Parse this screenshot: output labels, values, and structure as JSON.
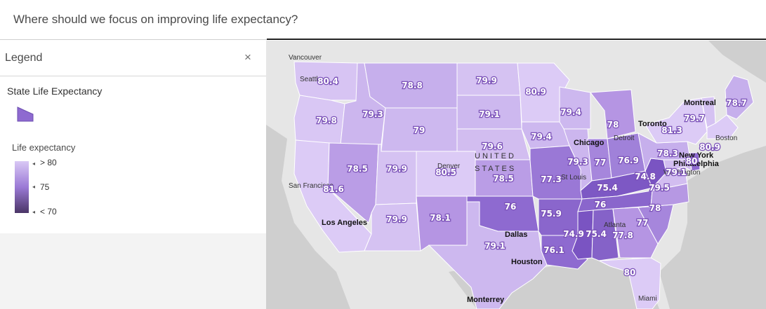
{
  "header": {
    "title": "Where should we focus on improving life expectancy?"
  },
  "legend": {
    "title": "Legend",
    "close_label": "×",
    "layer_name": "State Life Expectancy",
    "field_name": "Life expectancy",
    "ramp_labels": {
      "high": "> 80",
      "mid": "75",
      "low": "< 70"
    },
    "ramp_colors": {
      "high": "#d9c8f5",
      "mid": "#9b7ad6",
      "low": "#4a3566"
    }
  },
  "map": {
    "country": [
      "UNITED",
      "STATES"
    ],
    "cities": {
      "vancouver": "Vancouver",
      "seattle": "Seattle",
      "san_francisco": "San Francisco",
      "los_angeles": "Los Angeles",
      "denver": "Denver",
      "dallas": "Dallas",
      "houston": "Houston",
      "monterrey": "Monterrey",
      "st_louis": "St Louis",
      "chicago": "Chicago",
      "detroit": "Detroit",
      "toronto": "Toronto",
      "montreal": "Montreal",
      "boston": "Boston",
      "new_york": "New York",
      "philadelphia": "Philadelphia",
      "washington": "Washington",
      "atlanta": "Atlanta",
      "miami": "Miami"
    },
    "states": [
      {
        "id": "WA",
        "value": "80.4"
      },
      {
        "id": "OR",
        "value": "79.8"
      },
      {
        "id": "CA",
        "value": "81.6"
      },
      {
        "id": "ID",
        "value": "79.3"
      },
      {
        "id": "NV",
        "value": "78.5"
      },
      {
        "id": "MT",
        "value": "78.8"
      },
      {
        "id": "WY",
        "value": "79"
      },
      {
        "id": "UT",
        "value": "79.9"
      },
      {
        "id": "AZ",
        "value": "79.9"
      },
      {
        "id": "CO",
        "value": "80.5"
      },
      {
        "id": "NM",
        "value": "78.1"
      },
      {
        "id": "ND",
        "value": "79.9"
      },
      {
        "id": "SD",
        "value": "79.1"
      },
      {
        "id": "NE",
        "value": "79.6"
      },
      {
        "id": "KS",
        "value": "78.5"
      },
      {
        "id": "OK",
        "value": "76"
      },
      {
        "id": "TX",
        "value": "79.1"
      },
      {
        "id": "MN",
        "value": "80.9"
      },
      {
        "id": "IA",
        "value": "79.4"
      },
      {
        "id": "MO",
        "value": "77.3"
      },
      {
        "id": "AR",
        "value": "75.9"
      },
      {
        "id": "LA",
        "value": "76.1"
      },
      {
        "id": "WI",
        "value": "79.4"
      },
      {
        "id": "IL",
        "value": "79.3"
      },
      {
        "id": "MI",
        "value": "78"
      },
      {
        "id": "IN",
        "value": "77"
      },
      {
        "id": "OH",
        "value": "76.9"
      },
      {
        "id": "KY",
        "value": "75.4"
      },
      {
        "id": "TN",
        "value": "76"
      },
      {
        "id": "MS",
        "value": "74.9"
      },
      {
        "id": "AL",
        "value": "75.4"
      },
      {
        "id": "GA",
        "value": "77.8"
      },
      {
        "id": "FL",
        "value": "80"
      },
      {
        "id": "SC",
        "value": "77"
      },
      {
        "id": "NC",
        "value": "78"
      },
      {
        "id": "VA",
        "value": "79.5"
      },
      {
        "id": "WV",
        "value": "74.8"
      },
      {
        "id": "PA",
        "value": "78.3"
      },
      {
        "id": "NY",
        "value": "81.3"
      },
      {
        "id": "VT",
        "value": "79.7"
      },
      {
        "id": "ME",
        "value": "78.7"
      },
      {
        "id": "MA",
        "value": "80.9"
      },
      {
        "id": "NJ",
        "value": "80"
      },
      {
        "id": "MD",
        "value": "79.1"
      }
    ]
  }
}
